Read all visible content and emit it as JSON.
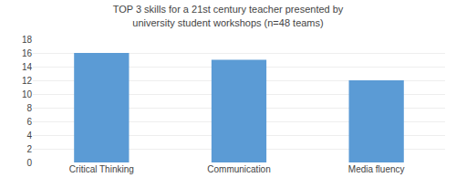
{
  "chart_data": {
    "type": "bar",
    "title": "TOP 3 skills for a 21st century teacher presented by\nuniversity student workshops (n=48 teams)",
    "categories": [
      "Critical Thinking",
      "Communication",
      "Media fluency"
    ],
    "values": [
      16,
      15,
      12
    ],
    "color": "#5b9bd5",
    "ylim": [
      0,
      18
    ],
    "yticks": [
      0,
      2,
      4,
      6,
      8,
      10,
      12,
      14,
      16,
      18
    ],
    "grid": true
  }
}
